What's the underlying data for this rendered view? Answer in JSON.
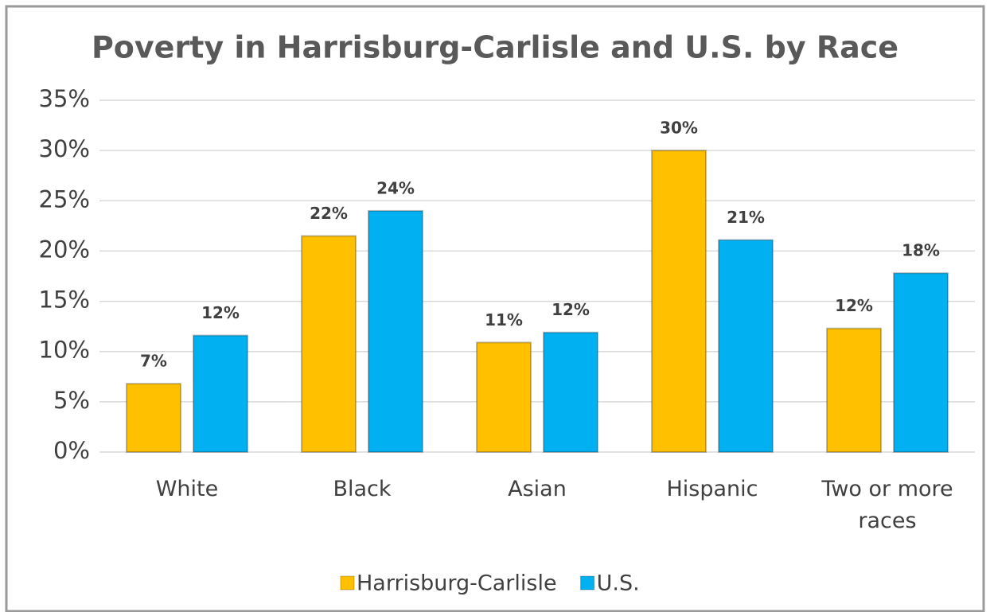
{
  "chart_data": {
    "type": "bar",
    "title": "Poverty in Harrisburg-Carlisle and U.S. by Race",
    "categories": [
      "White",
      "Black",
      "Asian",
      "Hispanic",
      "Two or more races"
    ],
    "series": [
      {
        "name": "Harrisburg-Carlisle",
        "color": "#FFC000",
        "values": [
          6.8,
          21.5,
          10.9,
          30.0,
          12.3
        ],
        "value_labels": [
          "7%",
          "22%",
          "11%",
          "30%",
          "12%"
        ]
      },
      {
        "name": "U.S.",
        "color": "#00B0F0",
        "values": [
          11.6,
          24.0,
          11.9,
          21.1,
          17.8
        ],
        "value_labels": [
          "12%",
          "24%",
          "12%",
          "21%",
          "18%"
        ]
      }
    ],
    "ylim": [
      0,
      35
    ],
    "yticks": [
      {
        "value": 0,
        "label": "0%"
      },
      {
        "value": 5,
        "label": "5%"
      },
      {
        "value": 10,
        "label": "10%"
      },
      {
        "value": 15,
        "label": "15%"
      },
      {
        "value": 20,
        "label": "20%"
      },
      {
        "value": 25,
        "label": "25%"
      },
      {
        "value": 30,
        "label": "30%"
      },
      {
        "value": 35,
        "label": "35%"
      }
    ],
    "grid": true,
    "legend": "bottom"
  }
}
